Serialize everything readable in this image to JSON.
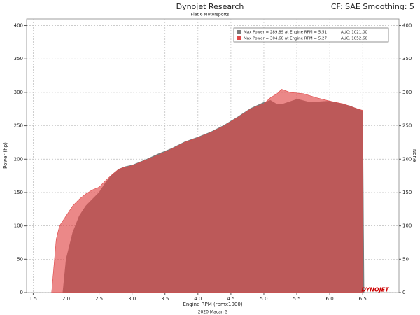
{
  "chart_data": {
    "type": "area",
    "title": "Dynojet Research",
    "subtitle": "Flat 6 Motorsports",
    "settings_label": "CF: SAE Smoothing: 5",
    "x_label": "Engine RPM (rpmx1000)",
    "y_label": "Power (hp)",
    "y2_label": "None",
    "footer": "2020 Macan S",
    "logo": "DYNOJET",
    "xlim": [
      1.4,
      7.05
    ],
    "ylim": [
      0,
      410
    ],
    "xticks": [
      1.5,
      {
        "value": 2,
        "label": "2.0"
      },
      2.5,
      {
        "value": 3,
        "label": "3.0"
      },
      3.5,
      {
        "value": 4,
        "label": "4.0"
      },
      4.5,
      {
        "value": 5,
        "label": "5.0"
      },
      5.5,
      {
        "value": 6,
        "label": "6.0"
      },
      6.5
    ],
    "yticks": [
      0,
      50,
      100,
      150,
      200,
      250,
      300,
      350,
      400
    ],
    "grid": true,
    "series": [
      {
        "name": "Max Power = 289.89 at Engine RPM = 5.51",
        "auc": "AUC: 1021.00",
        "color": "#7a7a7a",
        "opacity": 1,
        "x": [
          1.95,
          2.0,
          2.1,
          2.2,
          2.3,
          2.4,
          2.5,
          2.6,
          2.7,
          2.8,
          2.9,
          3.0,
          3.2,
          3.4,
          3.6,
          3.8,
          4.0,
          4.2,
          4.4,
          4.6,
          4.8,
          5.0,
          5.1,
          5.2,
          5.3,
          5.51,
          5.7,
          6.0,
          6.3,
          6.5,
          6.52
        ],
        "values": [
          0,
          50,
          90,
          115,
          130,
          140,
          150,
          165,
          177,
          185,
          189,
          191,
          199,
          208,
          216,
          226,
          233,
          241,
          251,
          263,
          276,
          285,
          288,
          282,
          283,
          289.89,
          285,
          287,
          280,
          272,
          0
        ]
      },
      {
        "name": "Max Power = 304.60 at Engine RPM = 5.27",
        "auc": "AUC: 1052.60",
        "color": "#e04848",
        "opacity": 0.65,
        "x": [
          1.78,
          1.85,
          1.9,
          2.0,
          2.1,
          2.2,
          2.3,
          2.4,
          2.5,
          2.6,
          2.7,
          2.8,
          2.9,
          3.0,
          3.2,
          3.4,
          3.6,
          3.8,
          4.0,
          4.2,
          4.4,
          4.6,
          4.8,
          5.0,
          5.1,
          5.2,
          5.27,
          5.4,
          5.6,
          5.8,
          6.0,
          6.2,
          6.4,
          6.5,
          6.5
        ],
        "values": [
          0,
          80,
          100,
          115,
          130,
          140,
          148,
          154,
          158,
          168,
          177,
          185,
          188,
          190,
          198,
          206,
          215,
          225,
          232,
          240,
          250,
          262,
          275,
          283,
          292,
          298,
          304.6,
          300,
          298,
          292,
          287,
          283,
          276,
          273,
          0
        ]
      }
    ]
  }
}
